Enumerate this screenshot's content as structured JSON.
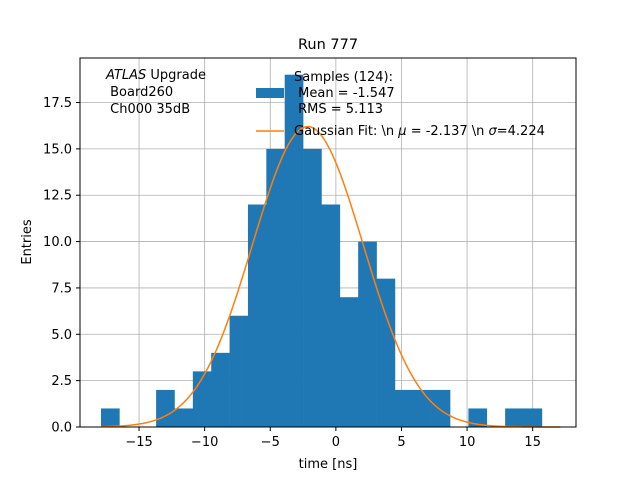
{
  "chart_data": {
    "type": "bar",
    "title": "Run 777",
    "xlabel": "time [ns]",
    "ylabel": "Entries",
    "xlim": [
      -19.5,
      18.3
    ],
    "ylim": [
      0,
      19.9
    ],
    "xticks": [
      -15,
      -10,
      -5,
      0,
      5,
      10,
      15
    ],
    "xtick_labels": [
      "−15",
      "−10",
      "−5",
      "0",
      "5",
      "10",
      "15"
    ],
    "yticks": [
      0,
      2.5,
      5,
      7.5,
      10,
      12.5,
      15,
      17.5
    ],
    "ytick_labels": [
      "0.0",
      "2.5",
      "5.0",
      "7.5",
      "10.0",
      "12.5",
      "15.0",
      "17.5"
    ],
    "grid": true,
    "legend_position": "top-right",
    "colors": {
      "histogram": "#1f77b4",
      "fit": "#ff7f0e",
      "grid": "#b0b0b0"
    },
    "histogram": {
      "name_lines": [
        "Samples (124):",
        " Mean = -1.547",
        " RMS = 5.113"
      ],
      "bin_edges": [
        -17.9,
        -16.5,
        -15.1,
        -13.7,
        -12.3,
        -10.9,
        -9.5,
        -8.1,
        -6.7,
        -5.3,
        -3.9,
        -2.5,
        -1.1,
        0.3,
        1.7,
        3.1,
        4.5,
        5.9,
        7.3,
        8.7,
        10.1,
        11.5,
        12.9,
        14.3,
        15.7,
        17.1
      ],
      "counts": [
        1,
        0,
        0,
        2,
        1,
        3,
        4,
        6,
        12,
        15,
        19,
        15,
        12,
        7,
        10,
        8,
        2,
        2,
        2,
        0,
        1,
        0,
        1,
        1,
        0
      ]
    },
    "fit": {
      "name_parts": [
        {
          "t": "Gaussian Fit: \\n ",
          "italic": false
        },
        {
          "t": "μ",
          "italic": true
        },
        {
          "t": " = -2.137 \\n ",
          "italic": false
        },
        {
          "t": "σ",
          "italic": true
        },
        {
          "t": "=4.224",
          "italic": false
        }
      ],
      "mu": -2.137,
      "sigma": 4.224,
      "amplitude": 16.2
    },
    "annotation": {
      "experiment": "ATLAS",
      "line1_rest": " Upgrade",
      "line2": " Board260",
      "line3": " Ch000 35dB"
    }
  }
}
